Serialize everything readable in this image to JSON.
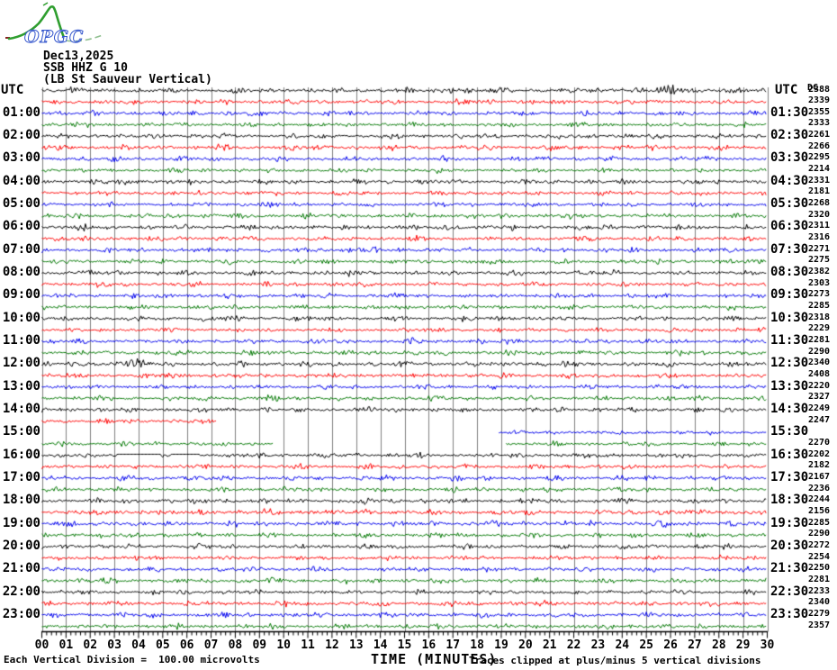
{
  "header": {
    "logo_text": "OPGC",
    "title_date": "Dec13,2025",
    "title_station": "SSB HHZ G 10",
    "title_desc": "(LB St Sauveur Vertical)",
    "left_axis_header": "UTC",
    "right_axis_header": "UTC",
    "dc_header": "DC"
  },
  "footer": {
    "scale_note": "Each Vertical Division =  100.00 microvolts",
    "clip_note": "Traces clipped at plus/minus 5 vertical divisions"
  },
  "palette": {
    "trace_cycle": [
      "#000000",
      "#ff0000",
      "#0000ee",
      "#007700"
    ],
    "grid": "#808080",
    "text": "#000000",
    "background": "#ffffff",
    "logo_green": "#2f9e2f",
    "logo_green_light": "#8fbf8f",
    "logo_blue": "#3355cc",
    "logo_red": "#882222"
  },
  "chart_data": {
    "type": "line",
    "subtype": "helicorder-seismogram",
    "xlabel": "TIME (MINUTES)",
    "x_axis": {
      "min": 0,
      "max": 30,
      "major_tick": 1,
      "minor_tick": 0.2
    },
    "x_tick_labels": [
      "00",
      "01",
      "02",
      "03",
      "04",
      "05",
      "06",
      "07",
      "08",
      "09",
      "10",
      "11",
      "12",
      "13",
      "14",
      "15",
      "16",
      "17",
      "18",
      "19",
      "20",
      "21",
      "22",
      "23",
      "24",
      "25",
      "26",
      "27",
      "28",
      "29",
      "30"
    ],
    "minutes_per_line": 30,
    "lines_per_hour": 2,
    "grid": true,
    "traces": [
      {
        "start": "00:00",
        "end": "00:30",
        "color": "black",
        "dc": 2388,
        "amp": 1.1,
        "bursts": [
          {
            "m": 17.2,
            "w": 0.4,
            "k": 1.3
          },
          {
            "m": 26.2,
            "w": 0.9,
            "k": 1.1
          }
        ]
      },
      {
        "start": "00:30",
        "end": "01:00",
        "color": "red",
        "dc": 2339,
        "amp": 1.0
      },
      {
        "start": "01:00",
        "end": "01:30",
        "color": "blue",
        "dc": 2355,
        "amp": 1.05
      },
      {
        "start": "01:30",
        "end": "02:00",
        "color": "green",
        "dc": 2333,
        "amp": 0.95
      },
      {
        "start": "02:00",
        "end": "02:30",
        "color": "black",
        "dc": 2261,
        "amp": 1.0
      },
      {
        "start": "02:30",
        "end": "03:00",
        "color": "red",
        "dc": 2266,
        "amp": 1.1
      },
      {
        "start": "03:00",
        "end": "03:30",
        "color": "blue",
        "dc": 2295,
        "amp": 1.0
      },
      {
        "start": "03:30",
        "end": "04:00",
        "color": "green",
        "dc": 2214,
        "amp": 0.9
      },
      {
        "start": "04:00",
        "end": "04:30",
        "color": "black",
        "dc": 2331,
        "amp": 1.05
      },
      {
        "start": "04:30",
        "end": "05:00",
        "color": "red",
        "dc": 2181,
        "amp": 1.0
      },
      {
        "start": "05:00",
        "end": "05:30",
        "color": "blue",
        "dc": 2268,
        "amp": 0.95
      },
      {
        "start": "05:30",
        "end": "06:00",
        "color": "green",
        "dc": 2320,
        "amp": 1.0
      },
      {
        "start": "06:00",
        "end": "06:30",
        "color": "black",
        "dc": 2311,
        "amp": 1.1
      },
      {
        "start": "06:30",
        "end": "07:00",
        "color": "red",
        "dc": 2316,
        "amp": 1.0
      },
      {
        "start": "07:00",
        "end": "07:30",
        "color": "blue",
        "dc": 2271,
        "amp": 1.0,
        "bursts": [
          {
            "m": 12.3,
            "w": 1.0,
            "k": 0.7
          }
        ]
      },
      {
        "start": "07:30",
        "end": "08:00",
        "color": "green",
        "dc": 2275,
        "amp": 0.95
      },
      {
        "start": "08:00",
        "end": "08:30",
        "color": "black",
        "dc": 2382,
        "amp": 1.05
      },
      {
        "start": "08:30",
        "end": "09:00",
        "color": "red",
        "dc": 2303,
        "amp": 1.0
      },
      {
        "start": "09:00",
        "end": "09:30",
        "color": "blue",
        "dc": 2273,
        "amp": 0.95
      },
      {
        "start": "09:30",
        "end": "10:00",
        "color": "green",
        "dc": 2285,
        "amp": 1.0
      },
      {
        "start": "10:00",
        "end": "10:30",
        "color": "black",
        "dc": 2318,
        "amp": 1.05
      },
      {
        "start": "10:30",
        "end": "11:00",
        "color": "red",
        "dc": 2229,
        "amp": 0.9
      },
      {
        "start": "11:00",
        "end": "11:30",
        "color": "blue",
        "dc": 2281,
        "amp": 1.0
      },
      {
        "start": "11:30",
        "end": "12:00",
        "color": "green",
        "dc": 2290,
        "amp": 1.05
      },
      {
        "start": "12:00",
        "end": "12:30",
        "color": "black",
        "dc": 2340,
        "amp": 1.1,
        "bursts": [
          {
            "m": 3.6,
            "w": 0.35,
            "k": 1.6
          }
        ]
      },
      {
        "start": "12:30",
        "end": "13:00",
        "color": "red",
        "dc": 2408,
        "amp": 1.0
      },
      {
        "start": "13:00",
        "end": "13:30",
        "color": "blue",
        "dc": 2220,
        "amp": 0.95
      },
      {
        "start": "13:30",
        "end": "14:00",
        "color": "green",
        "dc": 2327,
        "amp": 1.0
      },
      {
        "start": "14:00",
        "end": "14:30",
        "color": "black",
        "dc": 2249,
        "amp": 1.0
      },
      {
        "start": "14:30",
        "end": "15:00",
        "color": "red",
        "dc": 2247,
        "amp": 0.95,
        "segments": [
          [
            0,
            7.2
          ]
        ]
      },
      {
        "start": "15:00",
        "end": "15:30",
        "color": "blue",
        "dc": null,
        "amp": 0.85,
        "segments": [
          [
            18.9,
            30
          ]
        ]
      },
      {
        "start": "15:30",
        "end": "16:00",
        "color": "green",
        "dc": 2270,
        "amp": 0.9,
        "segments": [
          [
            0,
            9.6
          ],
          [
            19.2,
            30
          ]
        ]
      },
      {
        "start": "16:00",
        "end": "16:30",
        "color": "black",
        "dc": 2202,
        "amp": 0.95,
        "flats": [
          [
            3.1,
            4.9
          ],
          [
            5.3,
            6.5
          ]
        ]
      },
      {
        "start": "16:30",
        "end": "17:00",
        "color": "red",
        "dc": 2182,
        "amp": 1.0
      },
      {
        "start": "17:00",
        "end": "17:30",
        "color": "blue",
        "dc": 2167,
        "amp": 1.05
      },
      {
        "start": "17:30",
        "end": "18:00",
        "color": "green",
        "dc": 2236,
        "amp": 1.0
      },
      {
        "start": "18:00",
        "end": "18:30",
        "color": "black",
        "dc": 2244,
        "amp": 1.1
      },
      {
        "start": "18:30",
        "end": "19:00",
        "color": "red",
        "dc": 2156,
        "amp": 1.2
      },
      {
        "start": "19:00",
        "end": "19:30",
        "color": "blue",
        "dc": 2285,
        "amp": 1.15
      },
      {
        "start": "19:30",
        "end": "20:00",
        "color": "green",
        "dc": 2290,
        "amp": 1.0
      },
      {
        "start": "20:00",
        "end": "20:30",
        "color": "black",
        "dc": 2272,
        "amp": 1.05
      },
      {
        "start": "20:30",
        "end": "21:00",
        "color": "red",
        "dc": 2254,
        "amp": 0.95
      },
      {
        "start": "21:00",
        "end": "21:30",
        "color": "blue",
        "dc": 2250,
        "amp": 1.0
      },
      {
        "start": "21:30",
        "end": "22:00",
        "color": "green",
        "dc": 2281,
        "amp": 1.05
      },
      {
        "start": "22:00",
        "end": "22:30",
        "color": "black",
        "dc": 2233,
        "amp": 1.0
      },
      {
        "start": "22:30",
        "end": "23:00",
        "color": "red",
        "dc": 2340,
        "amp": 1.1
      },
      {
        "start": "23:00",
        "end": "23:30",
        "color": "blue",
        "dc": 2279,
        "amp": 1.0
      },
      {
        "start": "23:30",
        "end": "24:00",
        "color": "green",
        "dc": 2357,
        "amp": 1.05
      }
    ]
  }
}
